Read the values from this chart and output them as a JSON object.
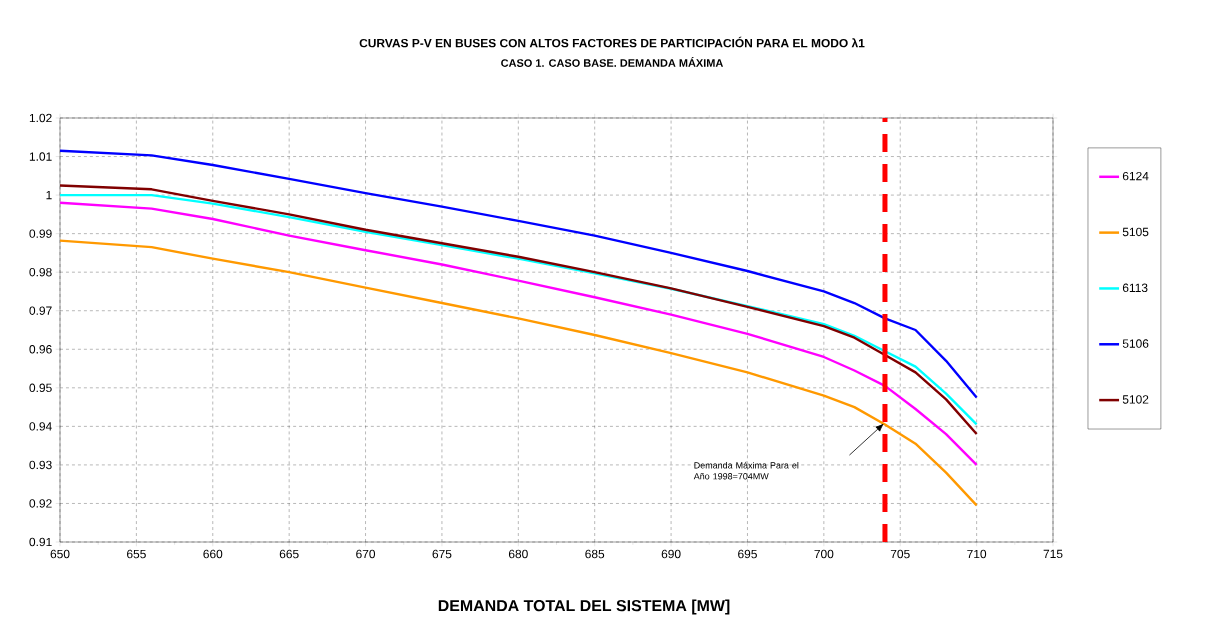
{
  "chart_data": {
    "type": "line",
    "title": "CURVAS P-V EN BUSES CON ALTOS FACTORES DE PARTICIPACIÓN PARA EL MODO λ1",
    "subtitle": "CASO 1.  CASO BASE. DEMANDA MÁXIMA",
    "xlabel": "DEMANDA TOTAL DEL SISTEMA  [MW]",
    "x": [
      650,
      656,
      660,
      665,
      670,
      675,
      680,
      685,
      690,
      695,
      700,
      702,
      704,
      706,
      708,
      710
    ],
    "series": [
      {
        "name": "6124",
        "color": "#ff00ff",
        "values": [
          0.998,
          0.9965,
          0.9938,
          0.9895,
          0.9857,
          0.982,
          0.9778,
          0.9735,
          0.969,
          0.964,
          0.958,
          0.9545,
          0.9505,
          0.9445,
          0.938,
          0.93
        ]
      },
      {
        "name": "5105",
        "color": "#ff9900",
        "values": [
          0.9882,
          0.9865,
          0.9835,
          0.98,
          0.976,
          0.972,
          0.968,
          0.9637,
          0.959,
          0.954,
          0.948,
          0.945,
          0.9405,
          0.9355,
          0.928,
          0.9195
        ]
      },
      {
        "name": "6113",
        "color": "#00ffff",
        "values": [
          1.0,
          1.0,
          0.9978,
          0.9943,
          0.9905,
          0.987,
          0.9835,
          0.9797,
          0.9757,
          0.9712,
          0.9665,
          0.9635,
          0.9595,
          0.9555,
          0.9485,
          0.9405
        ]
      },
      {
        "name": "5106",
        "color": "#0000ff",
        "values": [
          1.0115,
          1.0103,
          1.0078,
          1.0042,
          1.0005,
          0.997,
          0.9933,
          0.9895,
          0.985,
          0.9803,
          0.975,
          0.972,
          0.968,
          0.965,
          0.957,
          0.9475
        ]
      },
      {
        "name": "5102",
        "color": "#800000",
        "values": [
          1.0025,
          1.0015,
          0.9985,
          0.995,
          0.991,
          0.9875,
          0.984,
          0.98,
          0.9758,
          0.971,
          0.966,
          0.963,
          0.9585,
          0.954,
          0.947,
          0.938
        ]
      }
    ],
    "xlim": [
      650,
      715
    ],
    "xticks": [
      650,
      655,
      660,
      665,
      670,
      675,
      680,
      685,
      690,
      695,
      700,
      705,
      710,
      715
    ],
    "ylim": [
      0.91,
      1.02
    ],
    "yticks": [
      0.91,
      0.92,
      0.93,
      0.94,
      0.95,
      0.96,
      0.97,
      0.98,
      0.99,
      1,
      1.01,
      1.02
    ],
    "grid": true,
    "legend": "right",
    "marker": "none",
    "line_style": "solid",
    "ref_lines": [
      {
        "axis": "x",
        "value": 704,
        "color": "#ff0000",
        "line_style": "dashed"
      }
    ],
    "annotations": [
      "Demanda Máxima Para el Año 1998=704MW"
    ]
  }
}
